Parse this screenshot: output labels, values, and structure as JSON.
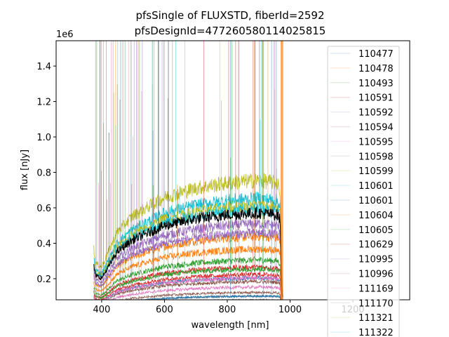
{
  "chart_data": {
    "type": "line",
    "title": [
      "pfsSingle of FLUXSTD, fiberId=2592",
      "pfsDesignId=4772605801140258​15"
    ],
    "xlabel": "wavelength [nm]",
    "ylabel": "flux [nJy]",
    "y_offset_label": "1e6",
    "xlim": [
      255,
      1381
    ],
    "ylim": [
      0.081,
      1.543
    ],
    "y_scale": 1000000,
    "xticks": [
      400,
      600,
      800,
      1000,
      1200
    ],
    "xtick_labels": [
      "400",
      "600",
      "800",
      "1000",
      "1200"
    ],
    "yticks": [
      0.2,
      0.4,
      0.6,
      0.8,
      1.0,
      1.2,
      1.4
    ],
    "ytick_labels": [
      "0.2",
      "0.4",
      "0.6",
      "0.8",
      "1.0",
      "1.2",
      "1.4"
    ],
    "grid": false,
    "legend_position": "upper-right",
    "shape_x": [
      375,
      380,
      400,
      450,
      500,
      600,
      700,
      800,
      900,
      960,
      968,
      975
    ],
    "shape_y": [
      0.5,
      0.39,
      0.36,
      0.63,
      0.75,
      0.89,
      0.96,
      1.0,
      1.02,
      1.0,
      0.95,
      0.18
    ],
    "series": [
      {
        "name": "110477",
        "color": "#1f77b4",
        "peak": 0.2
      },
      {
        "name": "110478",
        "color": "#ff7f0e",
        "peak": 0.43
      },
      {
        "name": "110493",
        "color": "#2ca02c",
        "peak": 0.3
      },
      {
        "name": "110591",
        "color": "#d62728",
        "peak": 0.26
      },
      {
        "name": "110592",
        "color": "#9467bd",
        "peak": 0.5
      },
      {
        "name": "110594",
        "color": "#8c564b",
        "peak": 0.18
      },
      {
        "name": "110595",
        "color": "#e377c2",
        "peak": 0.15
      },
      {
        "name": "110598",
        "color": "#7f7f7f",
        "peak": 0.1
      },
      {
        "name": "110599",
        "color": "#bcbd22",
        "peak": 0.74
      },
      {
        "name": "110601",
        "color": "#17becf",
        "peak": 0.64
      },
      {
        "name": "110601",
        "color": "#1f77b4",
        "peak": 0.1
      },
      {
        "name": "110604",
        "color": "#ff7f0e",
        "peak": 0.36
      },
      {
        "name": "110605",
        "color": "#2ca02c",
        "peak": 0.25
      },
      {
        "name": "110629",
        "color": "#d62728",
        "peak": 0.22
      },
      {
        "name": "110995",
        "color": "#9467bd",
        "peak": 0.45
      },
      {
        "name": "110996",
        "color": "#8c564b",
        "peak": 0.12
      },
      {
        "name": "111169",
        "color": "#e377c2",
        "peak": 0.2
      },
      {
        "name": "111170",
        "color": "#7f7f7f",
        "peak": 0.08
      },
      {
        "name": "111321",
        "color": "#bcbd22",
        "peak": 0.6
      },
      {
        "name": "111322",
        "color": "#17becf",
        "peak": 0.58
      }
    ],
    "highlight_series": {
      "color": "#000000",
      "peak": 0.56
    }
  }
}
